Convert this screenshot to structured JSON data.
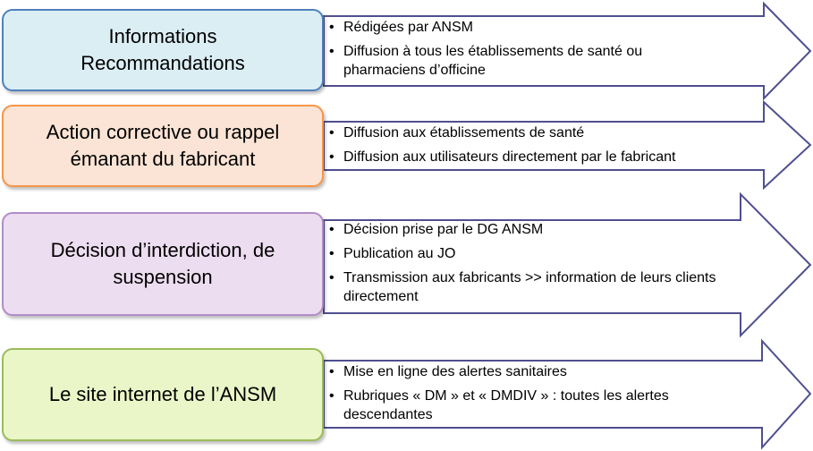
{
  "rows": [
    {
      "box_lines": [
        "Informations",
        "Recommandations"
      ],
      "colors": {
        "fill": "#DBEEF4",
        "border": "#4F81BD"
      },
      "bullets": [
        "Rédigées par ANSM",
        "Diffusion à tous les établissements de santé ou pharmaciens d’officine"
      ]
    },
    {
      "box_lines": [
        "Action corrective ou rappel",
        "émanant du fabricant"
      ],
      "colors": {
        "fill": "#FBE4D5",
        "border": "#F79646"
      },
      "bullets": [
        "Diffusion aux établissements de santé",
        "Diffusion aux utilisateurs directement par le fabricant"
      ]
    },
    {
      "box_lines": [
        "Décision d’interdiction, de",
        "suspension"
      ],
      "colors": {
        "fill": "#EDDDF0",
        "border": "#B38CC8"
      },
      "bullets": [
        "Décision prise par le DG ANSM",
        "Publication au JO",
        "Transmission aux fabricants >> information de leurs clients directement"
      ]
    },
    {
      "box_lines": [
        "Le site internet de l’ANSM"
      ],
      "colors": {
        "fill": "#EBF6C8",
        "border": "#9BBB59"
      },
      "bullets": [
        "Mise en ligne des alertes sanitaires",
        "Rubriques « DM » et « DMDIV » : toutes les alertes descendantes"
      ]
    }
  ],
  "arrow_stroke": "#4F4F8F"
}
